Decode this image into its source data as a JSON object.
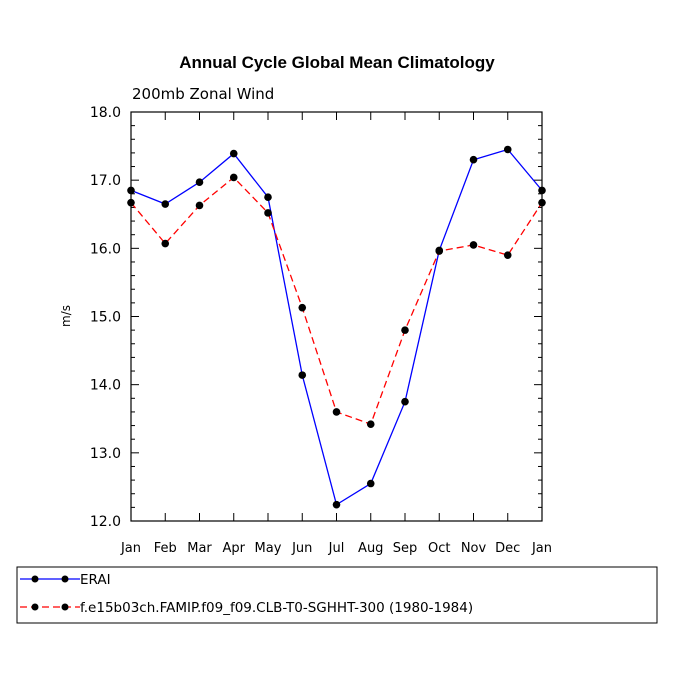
{
  "chart_data": {
    "type": "line",
    "title": "Annual Cycle Global Mean Climatology",
    "subtitle": "200mb Zonal Wind",
    "xlabel": "",
    "ylabel": "m/s",
    "categories": [
      "Jan",
      "Feb",
      "Mar",
      "Apr",
      "May",
      "Jun",
      "Jul",
      "Aug",
      "Sep",
      "Oct",
      "Nov",
      "Dec",
      "Jan"
    ],
    "ylim": [
      12.0,
      18.0
    ],
    "yticks": [
      "12.0",
      "13.0",
      "14.0",
      "15.0",
      "16.0",
      "17.0",
      "18.0"
    ],
    "grid": false,
    "legend_position": "bottom",
    "series": [
      {
        "name": "ERAI",
        "color": "#0000ff",
        "dash": "solid",
        "values": [
          16.85,
          16.65,
          16.97,
          17.39,
          16.75,
          14.14,
          12.24,
          12.55,
          13.75,
          15.97,
          17.3,
          17.45,
          16.85
        ]
      },
      {
        "name": "f.e15b03ch.FAMIP.f09_f09.CLB-T0-SGHHT-300 (1980-1984)",
        "color": "#ff0000",
        "dash": "dashed",
        "values": [
          16.67,
          16.07,
          16.63,
          17.04,
          16.52,
          15.13,
          13.6,
          13.42,
          14.8,
          15.96,
          16.05,
          15.9,
          16.67
        ]
      }
    ],
    "marker_color": "#000000"
  }
}
